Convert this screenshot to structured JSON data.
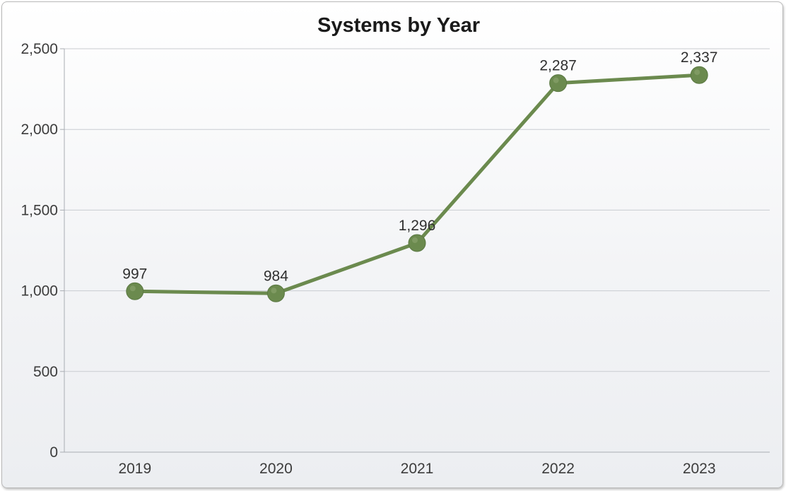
{
  "chart_data": {
    "type": "line",
    "title": "Systems by Year",
    "xlabel": "",
    "ylabel": "",
    "categories": [
      "2019",
      "2020",
      "2021",
      "2022",
      "2023"
    ],
    "series": [
      {
        "values": [
          997,
          984,
          1296,
          2287,
          2337
        ],
        "data_labels": [
          "997",
          "984",
          "1,296",
          "2,287",
          "2,337"
        ],
        "color": "#6b8a4e"
      }
    ],
    "ylim": [
      0,
      2500
    ],
    "yticks": [
      0,
      500,
      1000,
      1500,
      2000,
      2500
    ],
    "ytick_labels": [
      "0",
      "500",
      "1,000",
      "1,500",
      "2,000",
      "2,500"
    ],
    "grid": true,
    "legend": "none"
  },
  "colors": {
    "series_line": "#6b8a4e",
    "marker_fill": "#6b8a4e",
    "gridline": "#c9ccd1",
    "axis_line": "#a9adb3"
  }
}
